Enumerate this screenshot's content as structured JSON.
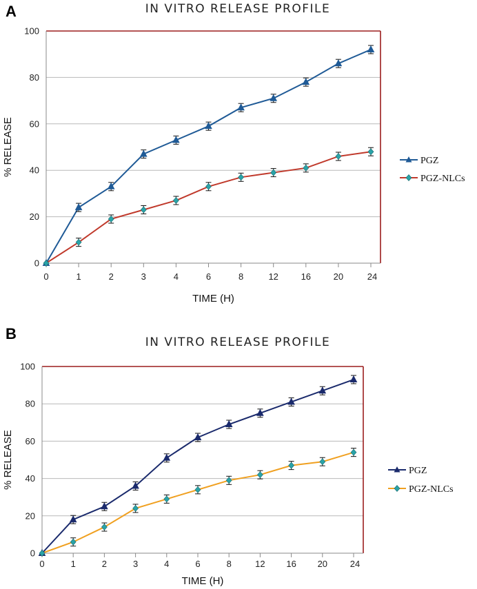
{
  "chart_data": [
    {
      "panel": "A",
      "type": "line",
      "title": "IN VITRO RELEASE PROFILE",
      "xlabel": "TIME (H)",
      "ylabel": "% RELEASE",
      "categories": [
        "0",
        "1",
        "2",
        "3",
        "4",
        "6",
        "8",
        "12",
        "16",
        "20",
        "24"
      ],
      "ylim": [
        0,
        100
      ],
      "yticks": [
        0,
        20,
        40,
        60,
        80,
        100
      ],
      "grid": true,
      "legend_position": "right",
      "series": [
        {
          "name": "PGZ",
          "color": "#1f5a96",
          "marker": "triangle",
          "values": [
            0,
            24,
            33,
            47,
            53,
            59,
            67,
            71,
            78,
            86,
            92
          ]
        },
        {
          "name": "PGZ-NLCs",
          "color": "#c0392b",
          "marker": "diamond",
          "marker_color": "#2aa3a8",
          "values": [
            0,
            9,
            19,
            23,
            27,
            33,
            37,
            39,
            41,
            46,
            48
          ]
        }
      ]
    },
    {
      "panel": "B",
      "type": "line",
      "title": "IN VITRO RELEASE PROFILE",
      "xlabel": "TIME (H)",
      "ylabel": "% RELEASE",
      "categories": [
        "0",
        "1",
        "2",
        "3",
        "4",
        "6",
        "8",
        "12",
        "16",
        "20",
        "24"
      ],
      "ylim": [
        0,
        100
      ],
      "yticks": [
        0,
        20,
        40,
        60,
        80,
        100
      ],
      "grid": true,
      "legend_position": "right",
      "series": [
        {
          "name": "PGZ",
          "color": "#1a2a6c",
          "marker": "triangle",
          "values": [
            0,
            18,
            25,
            36,
            51,
            62,
            69,
            75,
            81,
            87,
            93
          ]
        },
        {
          "name": "PGZ-NLCs",
          "color": "#f0a020",
          "marker": "diamond",
          "marker_color": "#2aa3a8",
          "values": [
            0,
            6,
            14,
            24,
            29,
            34,
            39,
            42,
            47,
            49,
            54
          ]
        }
      ]
    }
  ]
}
